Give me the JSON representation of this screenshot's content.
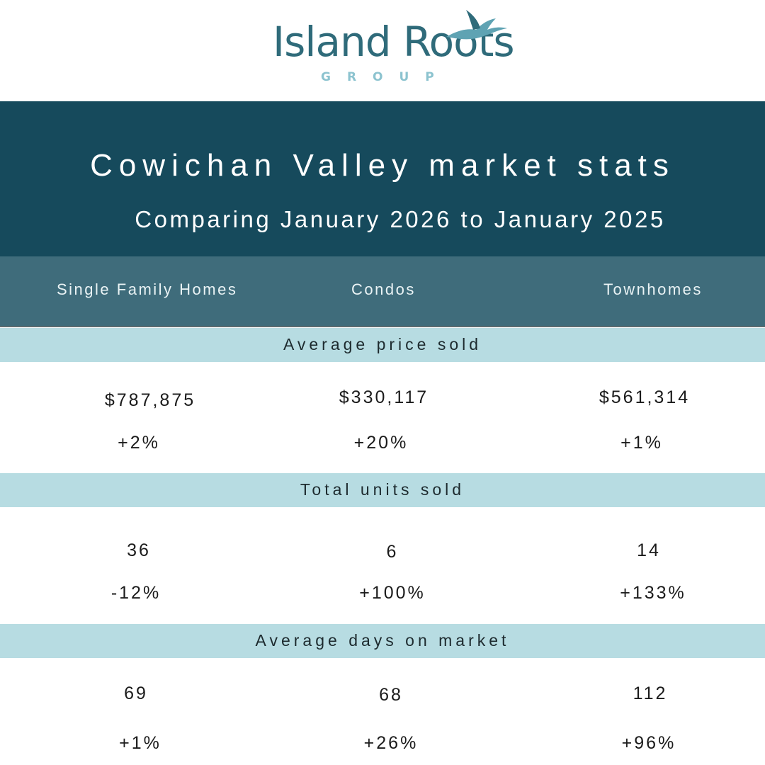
{
  "brand": {
    "name": "Island Roots",
    "sub": "GROUP",
    "icon": "seagull-icon",
    "colors": {
      "primary": "#2f6b7a",
      "secondary": "#8cc3cf"
    }
  },
  "header": {
    "title": "Cowichan Valley market stats",
    "subtitle": "Comparing January 2026 to January 2025"
  },
  "columns": [
    "Single Family Homes",
    "Condos",
    "Townhomes"
  ],
  "sections": [
    {
      "label": "Average price sold",
      "values": [
        "$787,875",
        "$330,117",
        "$561,314"
      ],
      "changes": [
        "+2%",
        "+20%",
        "+1%"
      ]
    },
    {
      "label": "Total units sold",
      "values": [
        "36",
        "6",
        "14"
      ],
      "changes": [
        "-12%",
        "+100%",
        "+133%"
      ]
    },
    {
      "label": "Average days on market",
      "values": [
        "69",
        "68",
        "112"
      ],
      "changes": [
        "+1%",
        "+26%",
        "+96%"
      ]
    }
  ],
  "colors": {
    "header_band": "#164a5c",
    "column_band": "#3f6c7b",
    "section_band": "#b7dce2"
  }
}
